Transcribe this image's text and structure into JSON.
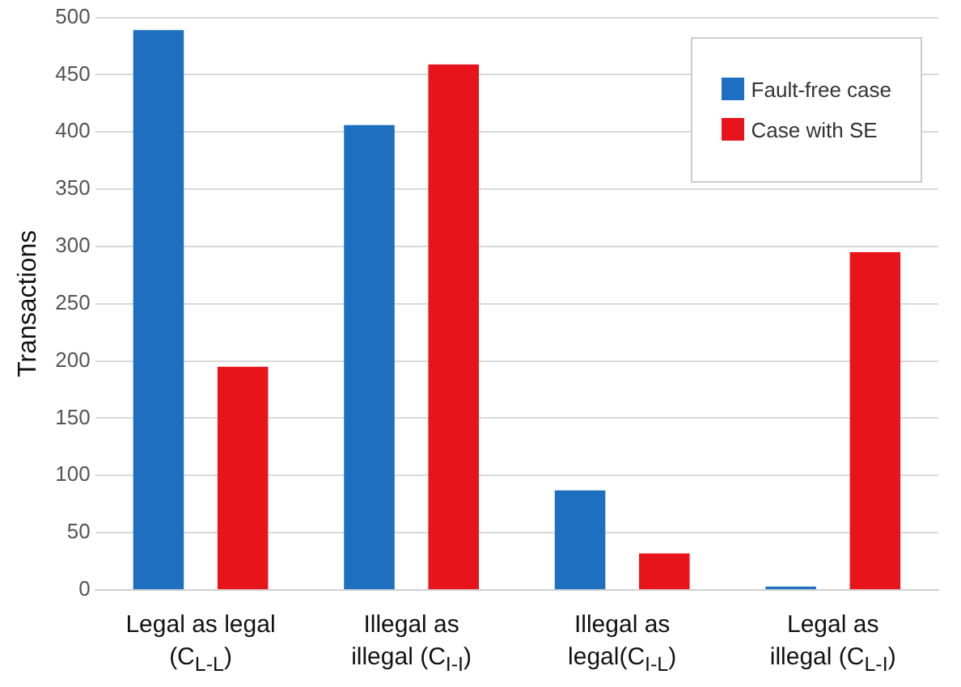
{
  "chart_data": {
    "type": "bar",
    "ylabel": "Transactions",
    "categories": [
      "Legal as legal (C$_{L-L}$)",
      "Illegal as illegal (C$_{I-I}$)",
      "Illegal as legal(C$_{I-L}$)",
      "Legal as illegal (C$_{L-I}$)"
    ],
    "series": [
      {
        "name": "Fault-free case",
        "color": "#1f6fc0",
        "values": [
          489,
          406,
          87,
          3
        ]
      },
      {
        "name": "Case with SE",
        "color": "#e8141c",
        "values": [
          195,
          459,
          32,
          295
        ]
      }
    ],
    "ylim": [
      0,
      500
    ],
    "yticks": [
      0,
      50,
      100,
      150,
      200,
      250,
      300,
      350,
      400,
      450,
      500
    ],
    "grid": "y",
    "legend": "top right"
  }
}
